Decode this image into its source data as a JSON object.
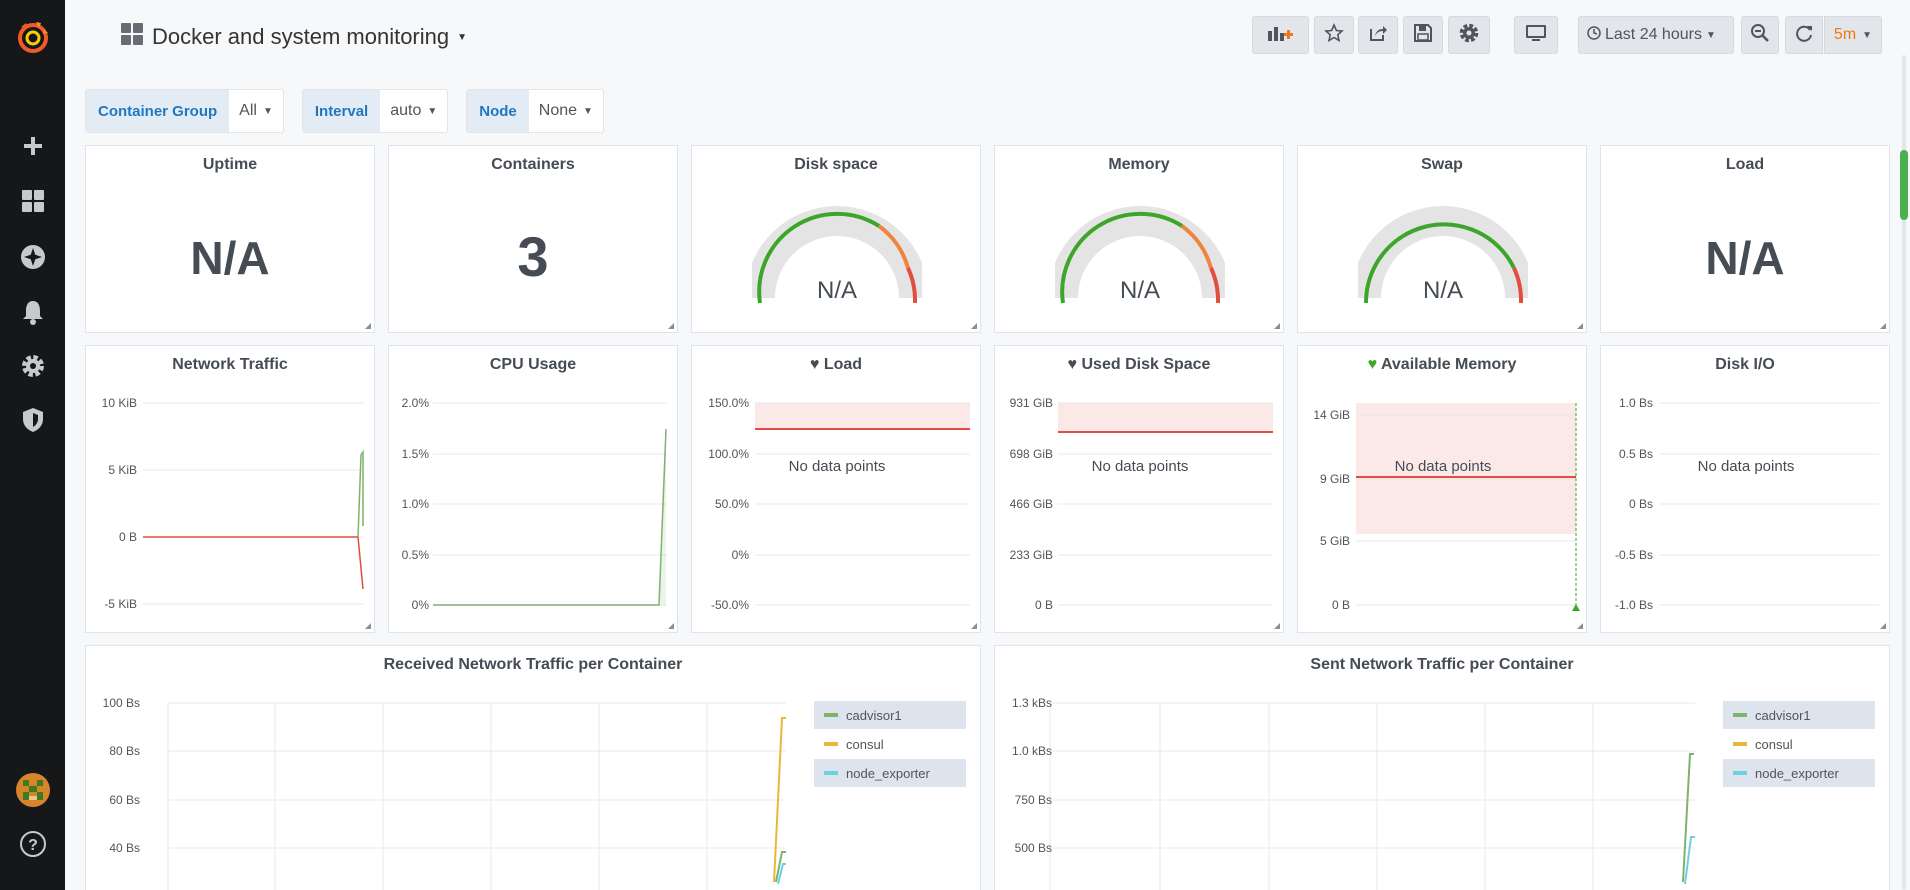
{
  "dashboard": {
    "title": "Docker and system monitoring",
    "time_range": "Last 24 hours",
    "refresh": "5m"
  },
  "variables": [
    {
      "label": "Container Group",
      "value": "All"
    },
    {
      "label": "Interval",
      "value": "auto"
    },
    {
      "label": "Node",
      "value": "None"
    }
  ],
  "stats": {
    "uptime": {
      "title": "Uptime",
      "value": "N/A"
    },
    "containers": {
      "title": "Containers",
      "value": "3"
    },
    "disk_space": {
      "title": "Disk space",
      "value": "N/A"
    },
    "memory": {
      "title": "Memory",
      "value": "N/A"
    },
    "swap": {
      "title": "Swap",
      "value": "N/A"
    },
    "load": {
      "title": "Load",
      "value": "N/A"
    }
  },
  "graphs": {
    "network_traffic": {
      "title": "Network Traffic",
      "yticks": [
        "10 KiB",
        "5 KiB",
        "0 B",
        "-5 KiB"
      ]
    },
    "cpu_usage": {
      "title": "CPU Usage",
      "yticks": [
        "2.0%",
        "1.5%",
        "1.0%",
        "0.5%",
        "0%"
      ]
    },
    "load": {
      "title": "Load",
      "yticks": [
        "150.0%",
        "100.0%",
        "50.0%",
        "0%",
        "-50.0%"
      ],
      "message": "No data points"
    },
    "used_disk": {
      "title": "Used Disk Space",
      "yticks": [
        "931 GiB",
        "698 GiB",
        "466 GiB",
        "233 GiB",
        "0 B"
      ],
      "message": "No data points"
    },
    "avail_memory": {
      "title": "Available Memory",
      "yticks": [
        "14 GiB",
        "9 GiB",
        "5 GiB",
        "0 B"
      ],
      "message": "No data points"
    },
    "disk_io": {
      "title": "Disk I/O",
      "yticks": [
        "1.0 Bs",
        "0.5 Bs",
        "0 Bs",
        "-0.5 Bs",
        "-1.0 Bs"
      ],
      "message": "No data points"
    },
    "received": {
      "title": "Received Network Traffic per Container",
      "yticks": [
        "100 Bs",
        "80 Bs",
        "60 Bs",
        "40 Bs"
      ]
    },
    "sent": {
      "title": "Sent Network Traffic per Container",
      "yticks": [
        "1.3 kBs",
        "1.0 kBs",
        "750 Bs",
        "500 Bs"
      ]
    }
  },
  "legend": [
    "cadvisor1",
    "consul",
    "node_exporter"
  ],
  "colors": {
    "green": "#7eb26d",
    "yellow": "#eab839",
    "cyan": "#6ed0e0",
    "red": "#e24d42",
    "orange": "#ef843c",
    "refresh_orange": "#eb7b18"
  },
  "icons": {
    "sidebar": [
      "grafana-logo-icon",
      "plus-icon",
      "dashboards-icon",
      "explore-icon",
      "bell-icon",
      "gear-icon",
      "shield-icon",
      "avatar",
      "help-icon"
    ],
    "toolbar": [
      "add-panel-icon",
      "star-icon",
      "share-icon",
      "save-icon",
      "settings-icon",
      "tv-icon",
      "clock-icon",
      "zoom-out-icon",
      "refresh-icon"
    ]
  }
}
